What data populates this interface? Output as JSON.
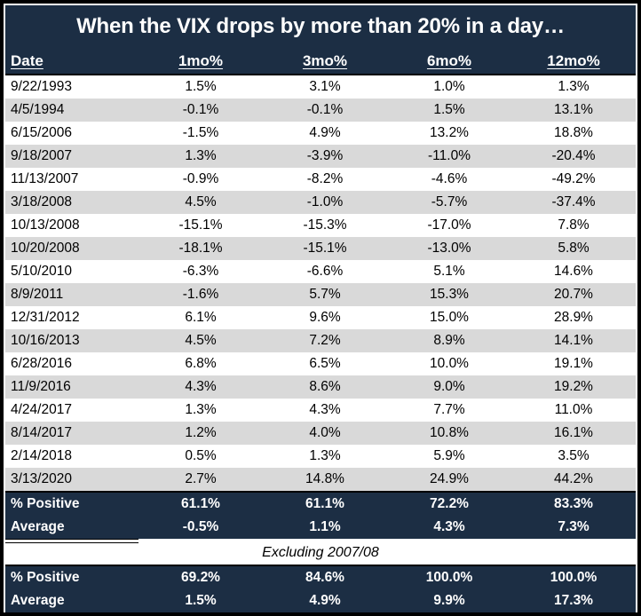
{
  "colors": {
    "navy_header": "#1c2e44",
    "alt_row_gray": "#d9d9d9",
    "border_black": "#000000",
    "light_text": "#ffffff",
    "dark_text": "#000000"
  },
  "table": {
    "title": "When the VIX drops by more than 20% in a day…",
    "columns": [
      "Date",
      "1mo%",
      "3mo%",
      "6mo%",
      "12mo%"
    ],
    "rows": [
      {
        "date": "9/22/1993",
        "values": [
          "1.5%",
          "3.1%",
          "1.0%",
          "1.3%"
        ]
      },
      {
        "date": "4/5/1994",
        "values": [
          "-0.1%",
          "-0.1%",
          "1.5%",
          "13.1%"
        ]
      },
      {
        "date": "6/15/2006",
        "values": [
          "-1.5%",
          "4.9%",
          "13.2%",
          "18.8%"
        ]
      },
      {
        "date": "9/18/2007",
        "values": [
          "1.3%",
          "-3.9%",
          "-11.0%",
          "-20.4%"
        ]
      },
      {
        "date": "11/13/2007",
        "values": [
          "-0.9%",
          "-8.2%",
          "-4.6%",
          "-49.2%"
        ]
      },
      {
        "date": "3/18/2008",
        "values": [
          "4.5%",
          "-1.0%",
          "-5.7%",
          "-37.4%"
        ]
      },
      {
        "date": "10/13/2008",
        "values": [
          "-15.1%",
          "-15.3%",
          "-17.0%",
          "7.8%"
        ]
      },
      {
        "date": "10/20/2008",
        "values": [
          "-18.1%",
          "-15.1%",
          "-13.0%",
          "5.8%"
        ]
      },
      {
        "date": "5/10/2010",
        "values": [
          "-6.3%",
          "-6.6%",
          "5.1%",
          "14.6%"
        ]
      },
      {
        "date": "8/9/2011",
        "values": [
          "-1.6%",
          "5.7%",
          "15.3%",
          "20.7%"
        ]
      },
      {
        "date": "12/31/2012",
        "values": [
          "6.1%",
          "9.6%",
          "15.0%",
          "28.9%"
        ]
      },
      {
        "date": "10/16/2013",
        "values": [
          "4.5%",
          "7.2%",
          "8.9%",
          "14.1%"
        ]
      },
      {
        "date": "6/28/2016",
        "values": [
          "6.8%",
          "6.5%",
          "10.0%",
          "19.1%"
        ]
      },
      {
        "date": "11/9/2016",
        "values": [
          "4.3%",
          "8.6%",
          "9.0%",
          "19.2%"
        ]
      },
      {
        "date": "4/24/2017",
        "values": [
          "1.3%",
          "4.3%",
          "7.7%",
          "11.0%"
        ]
      },
      {
        "date": "8/14/2017",
        "values": [
          "1.2%",
          "4.0%",
          "10.8%",
          "16.1%"
        ]
      },
      {
        "date": "2/14/2018",
        "values": [
          "0.5%",
          "1.3%",
          "5.9%",
          "3.5%"
        ]
      },
      {
        "date": "3/13/2020",
        "values": [
          "2.7%",
          "14.8%",
          "24.9%",
          "44.2%"
        ]
      }
    ],
    "summary_all": {
      "positive_label": "% Positive",
      "positive_values": [
        "61.1%",
        "61.1%",
        "72.2%",
        "83.3%"
      ],
      "average_label": "Average",
      "average_values": [
        "-0.5%",
        "1.1%",
        "4.3%",
        "7.3%"
      ]
    },
    "excluding_note": "Excluding 2007/08",
    "summary_excluding": {
      "positive_label": "% Positive",
      "positive_values": [
        "69.2%",
        "84.6%",
        "100.0%",
        "100.0%"
      ],
      "average_label": "Average",
      "average_values": [
        "1.5%",
        "4.9%",
        "9.9%",
        "17.3%"
      ]
    }
  },
  "chart_data": {
    "type": "table",
    "title": "When the VIX drops by more than 20% in a day…",
    "columns": [
      "Date",
      "1mo%",
      "3mo%",
      "6mo%",
      "12mo%"
    ],
    "units": "percent",
    "rows": [
      [
        "9/22/1993",
        1.5,
        3.1,
        1.0,
        1.3
      ],
      [
        "4/5/1994",
        -0.1,
        -0.1,
        1.5,
        13.1
      ],
      [
        "6/15/2006",
        -1.5,
        4.9,
        13.2,
        18.8
      ],
      [
        "9/18/2007",
        1.3,
        -3.9,
        -11.0,
        -20.4
      ],
      [
        "11/13/2007",
        -0.9,
        -8.2,
        -4.6,
        -49.2
      ],
      [
        "3/18/2008",
        4.5,
        -1.0,
        -5.7,
        -37.4
      ],
      [
        "10/13/2008",
        -15.1,
        -15.3,
        -17.0,
        7.8
      ],
      [
        "10/20/2008",
        -18.1,
        -15.1,
        -13.0,
        5.8
      ],
      [
        "5/10/2010",
        -6.3,
        -6.6,
        5.1,
        14.6
      ],
      [
        "8/9/2011",
        -1.6,
        5.7,
        15.3,
        20.7
      ],
      [
        "12/31/2012",
        6.1,
        9.6,
        15.0,
        28.9
      ],
      [
        "10/16/2013",
        4.5,
        7.2,
        8.9,
        14.1
      ],
      [
        "6/28/2016",
        6.8,
        6.5,
        10.0,
        19.1
      ],
      [
        "11/9/2016",
        4.3,
        8.6,
        9.0,
        19.2
      ],
      [
        "4/24/2017",
        1.3,
        4.3,
        7.7,
        11.0
      ],
      [
        "8/14/2017",
        1.2,
        4.0,
        10.8,
        16.1
      ],
      [
        "2/14/2018",
        0.5,
        1.3,
        5.9,
        3.5
      ],
      [
        "3/13/2020",
        2.7,
        14.8,
        24.9,
        44.2
      ]
    ],
    "summary_all": {
      "percent_positive": [
        61.1,
        61.1,
        72.2,
        83.3
      ],
      "average": [
        -0.5,
        1.1,
        4.3,
        7.3
      ]
    },
    "summary_excluding_2007_08": {
      "label": "Excluding 2007/08",
      "percent_positive": [
        69.2,
        84.6,
        100.0,
        100.0
      ],
      "average": [
        1.5,
        4.9,
        9.9,
        17.3
      ]
    }
  }
}
